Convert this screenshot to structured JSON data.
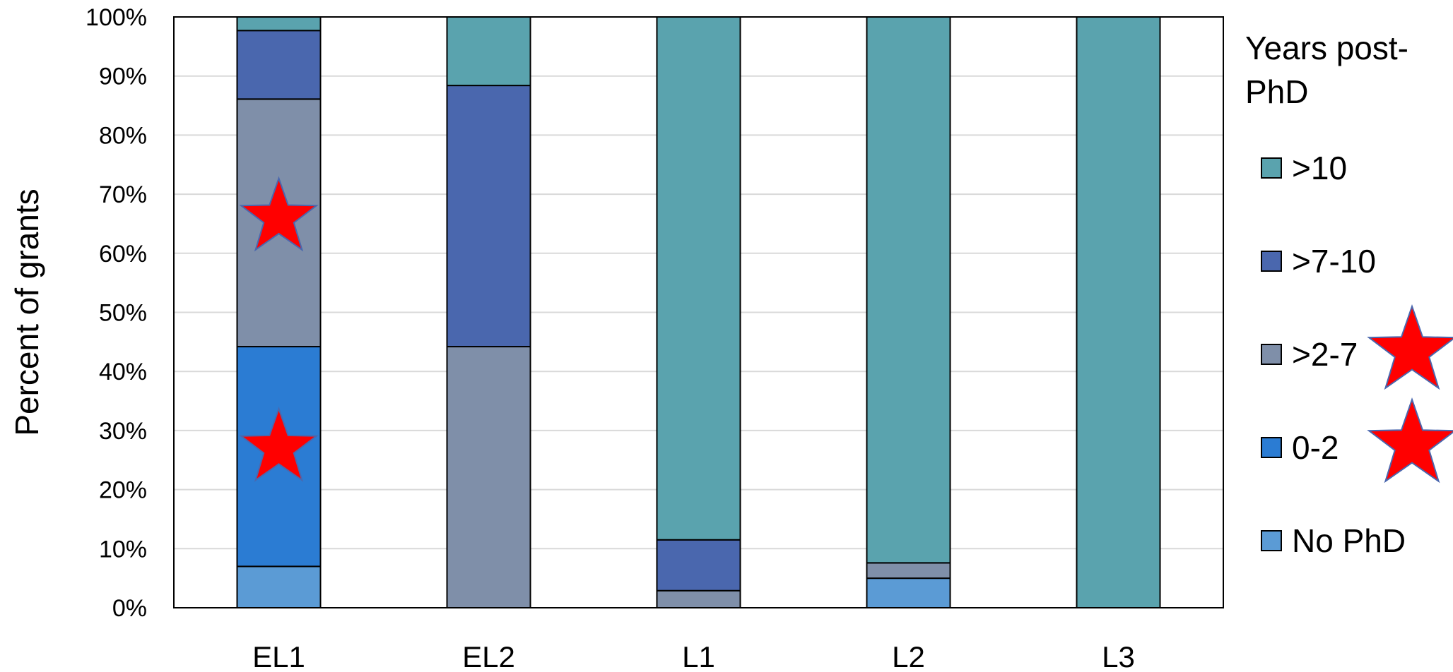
{
  "chart_data": {
    "type": "bar",
    "stacked": true,
    "normalized": true,
    "categories": [
      "EL1",
      "EL2",
      "L1",
      "L2",
      "L3"
    ],
    "series": [
      {
        "name": "No PhD",
        "color": "#5b9bd5",
        "values": [
          7,
          0,
          0,
          5,
          0
        ]
      },
      {
        "name": "0-2",
        "color": "#2b7cd3",
        "values": [
          37.2,
          0,
          0,
          0,
          0
        ]
      },
      {
        "name": ">2-7",
        "color": "#7f8fa9",
        "values": [
          41.9,
          44.2,
          2.9,
          2.6,
          0
        ]
      },
      {
        "name": ">7-10",
        "color": "#4a67ae",
        "values": [
          11.6,
          44.2,
          8.6,
          0,
          0
        ]
      },
      {
        "name": ">10",
        "color": "#5aa3ae",
        "values": [
          2.3,
          11.6,
          88.5,
          92.4,
          100
        ]
      }
    ],
    "ylabel": "Percent of grants",
    "ylim": [
      0,
      100
    ],
    "yticks": [
      "0%",
      "10%",
      "20%",
      "30%",
      "40%",
      "50%",
      "60%",
      "70%",
      "80%",
      "90%",
      "100%"
    ],
    "grid": true,
    "legend": {
      "title": "Years post-PhD",
      "title_lines": [
        "Years post-",
        "PhD"
      ],
      "placement": "right",
      "order": [
        ">10",
        ">7-10",
        ">2-7",
        "0-2",
        "No PhD"
      ]
    },
    "annotations": [
      {
        "type": "star",
        "color": "#ff0000",
        "category": "EL1",
        "value": 66
      },
      {
        "type": "star",
        "color": "#ff0000",
        "category": "EL1",
        "value": 27
      },
      {
        "type": "star",
        "color": "#ff0000",
        "legend_item": ">2-7"
      },
      {
        "type": "star",
        "color": "#ff0000",
        "legend_item": "0-2"
      }
    ]
  }
}
